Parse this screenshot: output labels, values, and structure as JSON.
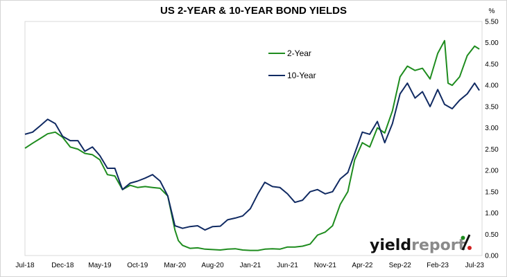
{
  "chart_data": {
    "type": "line",
    "title": "US 2-YEAR & 10-YEAR BOND YIELDS",
    "unit": "%",
    "ylim": [
      0,
      5.5
    ],
    "yticks": [
      "0.00",
      "0.50",
      "1.00",
      "1.50",
      "2.00",
      "2.50",
      "3.00",
      "3.50",
      "4.00",
      "4.50",
      "5.00",
      "5.50"
    ],
    "xlim": [
      "2018-07-01",
      "2023-07-31"
    ],
    "xticks": [
      {
        "label": "Jul-18",
        "date": "2018-07-01"
      },
      {
        "label": "Dec-18",
        "date": "2018-12-01"
      },
      {
        "label": "May-19",
        "date": "2019-05-01"
      },
      {
        "label": "Oct-19",
        "date": "2019-10-01"
      },
      {
        "label": "Mar-20",
        "date": "2020-03-01"
      },
      {
        "label": "Aug-20",
        "date": "2020-08-01"
      },
      {
        "label": "Jan-21",
        "date": "2021-01-01"
      },
      {
        "label": "Jun-21",
        "date": "2021-06-01"
      },
      {
        "label": "Nov-21",
        "date": "2021-11-01"
      },
      {
        "label": "Apr-22",
        "date": "2022-04-01"
      },
      {
        "label": "Sep-22",
        "date": "2022-09-01"
      },
      {
        "label": "Feb-23",
        "date": "2023-02-01"
      },
      {
        "label": "Jul-23",
        "date": "2023-07-01"
      }
    ],
    "grid": false,
    "legend_position": "top-center",
    "series": [
      {
        "name": "2-Year",
        "color": "#1e8c1e",
        "points": [
          [
            "2018-07-01",
            2.52
          ],
          [
            "2018-08-01",
            2.64
          ],
          [
            "2018-09-01",
            2.75
          ],
          [
            "2018-10-01",
            2.86
          ],
          [
            "2018-11-01",
            2.9
          ],
          [
            "2018-12-01",
            2.78
          ],
          [
            "2019-01-01",
            2.55
          ],
          [
            "2019-02-01",
            2.5
          ],
          [
            "2019-03-01",
            2.4
          ],
          [
            "2019-04-01",
            2.37
          ],
          [
            "2019-05-01",
            2.25
          ],
          [
            "2019-06-01",
            1.9
          ],
          [
            "2019-07-01",
            1.87
          ],
          [
            "2019-08-01",
            1.55
          ],
          [
            "2019-09-01",
            1.65
          ],
          [
            "2019-10-01",
            1.6
          ],
          [
            "2019-11-01",
            1.62
          ],
          [
            "2019-12-01",
            1.6
          ],
          [
            "2020-01-01",
            1.58
          ],
          [
            "2020-02-01",
            1.4
          ],
          [
            "2020-03-01",
            0.6
          ],
          [
            "2020-03-15",
            0.35
          ],
          [
            "2020-04-01",
            0.24
          ],
          [
            "2020-05-01",
            0.17
          ],
          [
            "2020-06-01",
            0.18
          ],
          [
            "2020-07-01",
            0.15
          ],
          [
            "2020-08-01",
            0.14
          ],
          [
            "2020-09-01",
            0.13
          ],
          [
            "2020-10-01",
            0.15
          ],
          [
            "2020-11-01",
            0.16
          ],
          [
            "2020-12-01",
            0.13
          ],
          [
            "2021-01-01",
            0.12
          ],
          [
            "2021-02-01",
            0.12
          ],
          [
            "2021-03-01",
            0.15
          ],
          [
            "2021-04-01",
            0.16
          ],
          [
            "2021-05-01",
            0.15
          ],
          [
            "2021-06-01",
            0.2
          ],
          [
            "2021-07-01",
            0.2
          ],
          [
            "2021-08-01",
            0.22
          ],
          [
            "2021-09-01",
            0.27
          ],
          [
            "2021-10-01",
            0.48
          ],
          [
            "2021-11-01",
            0.55
          ],
          [
            "2021-12-01",
            0.7
          ],
          [
            "2022-01-01",
            1.2
          ],
          [
            "2022-02-01",
            1.5
          ],
          [
            "2022-03-01",
            2.25
          ],
          [
            "2022-04-01",
            2.65
          ],
          [
            "2022-05-01",
            2.55
          ],
          [
            "2022-06-01",
            3.0
          ],
          [
            "2022-07-01",
            2.88
          ],
          [
            "2022-08-01",
            3.4
          ],
          [
            "2022-09-01",
            4.2
          ],
          [
            "2022-10-01",
            4.45
          ],
          [
            "2022-11-01",
            4.35
          ],
          [
            "2022-12-01",
            4.4
          ],
          [
            "2023-01-01",
            4.15
          ],
          [
            "2023-02-01",
            4.75
          ],
          [
            "2023-03-01",
            5.05
          ],
          [
            "2023-03-15",
            4.05
          ],
          [
            "2023-04-01",
            4.0
          ],
          [
            "2023-05-01",
            4.2
          ],
          [
            "2023-06-01",
            4.7
          ],
          [
            "2023-07-01",
            4.92
          ],
          [
            "2023-07-20",
            4.85
          ]
        ]
      },
      {
        "name": "10-Year",
        "color": "#102a62",
        "points": [
          [
            "2018-07-01",
            2.85
          ],
          [
            "2018-08-01",
            2.9
          ],
          [
            "2018-09-01",
            3.05
          ],
          [
            "2018-10-01",
            3.2
          ],
          [
            "2018-11-01",
            3.1
          ],
          [
            "2018-12-01",
            2.8
          ],
          [
            "2019-01-01",
            2.7
          ],
          [
            "2019-02-01",
            2.7
          ],
          [
            "2019-03-01",
            2.45
          ],
          [
            "2019-04-01",
            2.55
          ],
          [
            "2019-05-01",
            2.35
          ],
          [
            "2019-06-01",
            2.05
          ],
          [
            "2019-07-01",
            2.05
          ],
          [
            "2019-08-01",
            1.55
          ],
          [
            "2019-09-01",
            1.7
          ],
          [
            "2019-10-01",
            1.75
          ],
          [
            "2019-11-01",
            1.82
          ],
          [
            "2019-12-01",
            1.9
          ],
          [
            "2020-01-01",
            1.75
          ],
          [
            "2020-02-01",
            1.4
          ],
          [
            "2020-03-01",
            0.7
          ],
          [
            "2020-04-01",
            0.64
          ],
          [
            "2020-05-01",
            0.68
          ],
          [
            "2020-06-01",
            0.7
          ],
          [
            "2020-07-01",
            0.6
          ],
          [
            "2020-08-01",
            0.68
          ],
          [
            "2020-09-01",
            0.69
          ],
          [
            "2020-10-01",
            0.84
          ],
          [
            "2020-11-01",
            0.88
          ],
          [
            "2020-12-01",
            0.93
          ],
          [
            "2021-01-01",
            1.1
          ],
          [
            "2021-02-01",
            1.45
          ],
          [
            "2021-03-01",
            1.72
          ],
          [
            "2021-04-01",
            1.62
          ],
          [
            "2021-05-01",
            1.6
          ],
          [
            "2021-06-01",
            1.45
          ],
          [
            "2021-07-01",
            1.25
          ],
          [
            "2021-08-01",
            1.3
          ],
          [
            "2021-09-01",
            1.5
          ],
          [
            "2021-10-01",
            1.55
          ],
          [
            "2021-11-01",
            1.45
          ],
          [
            "2021-12-01",
            1.5
          ],
          [
            "2022-01-01",
            1.8
          ],
          [
            "2022-02-01",
            1.95
          ],
          [
            "2022-03-01",
            2.4
          ],
          [
            "2022-04-01",
            2.9
          ],
          [
            "2022-05-01",
            2.85
          ],
          [
            "2022-06-01",
            3.15
          ],
          [
            "2022-07-01",
            2.65
          ],
          [
            "2022-08-01",
            3.1
          ],
          [
            "2022-09-01",
            3.8
          ],
          [
            "2022-10-01",
            4.05
          ],
          [
            "2022-11-01",
            3.7
          ],
          [
            "2022-12-01",
            3.85
          ],
          [
            "2023-01-01",
            3.5
          ],
          [
            "2023-02-01",
            3.9
          ],
          [
            "2023-03-01",
            3.55
          ],
          [
            "2023-04-01",
            3.45
          ],
          [
            "2023-05-01",
            3.65
          ],
          [
            "2023-06-01",
            3.8
          ],
          [
            "2023-07-01",
            4.05
          ],
          [
            "2023-07-20",
            3.88
          ]
        ]
      }
    ]
  },
  "branding": {
    "logo_text": "yieldreport",
    "logo_symbol": "%"
  }
}
